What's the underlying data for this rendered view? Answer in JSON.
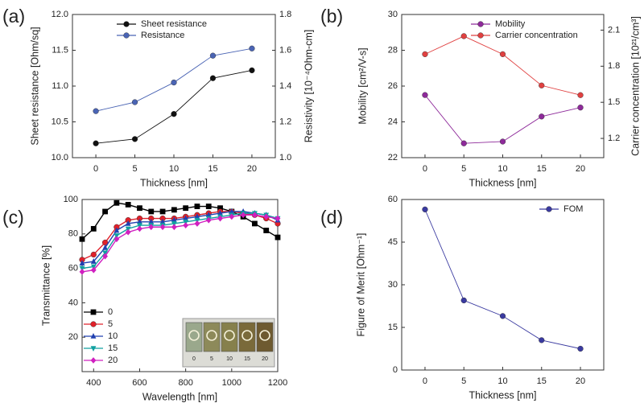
{
  "chart_data": [
    {
      "type": "line",
      "label": "(a)",
      "xlabel": "Thickness [nm]",
      "ylabel": "Sheet resistance [Ohm/sq]",
      "y2label": "Resistivity [10⁻⁴Ohm-cm]",
      "y2_color": "#3a4a9a",
      "x": [
        0,
        5,
        10,
        15,
        20
      ],
      "xlim": [
        -3,
        23
      ],
      "xticks": [
        0,
        5,
        10,
        15,
        20
      ],
      "ylim": [
        10,
        12
      ],
      "yticks": [
        {
          "value": 10,
          "label": "10.0"
        },
        10.5,
        {
          "value": 11,
          "label": "11.0"
        },
        11.5,
        {
          "value": 12,
          "label": "12.0"
        }
      ],
      "y2lim": [
        1,
        1.8
      ],
      "y2ticks": [
        {
          "value": 1,
          "label": "1.0"
        },
        1.2,
        1.4,
        1.6,
        1.8
      ],
      "legend": "upper left",
      "series": [
        {
          "name": "Sheet resistance",
          "color": "#111111",
          "marker": "circle",
          "values": [
            10.2,
            10.26,
            10.61,
            11.11,
            11.22
          ]
        },
        {
          "name": "Resistance",
          "color": "#4a64b4",
          "marker": "circle",
          "axis": "y2",
          "values": [
            1.26,
            1.31,
            1.42,
            1.57,
            1.61
          ]
        }
      ]
    },
    {
      "type": "line",
      "label": "(b)",
      "xlabel": "Thickness [nm]",
      "ylabel": "Mobility [cm²/V-s]",
      "y2label": "Carrier concentration [10²¹/cm³]",
      "y_color": "#8e2a9a",
      "y2_color": "#d83434",
      "x": [
        0,
        5,
        10,
        15,
        20
      ],
      "xlim": [
        -3,
        23
      ],
      "xticks": [
        0,
        5,
        10,
        15,
        20
      ],
      "ylim": [
        22,
        30
      ],
      "yticks": [
        22,
        24,
        26,
        28,
        30
      ],
      "y2lim": [
        1.04,
        2.23
      ],
      "y2ticks": [
        1.2,
        1.5,
        1.8,
        2.1
      ],
      "legend": "upper right",
      "series": [
        {
          "name": "Mobility",
          "color": "#8e2a9a",
          "marker": "circle",
          "values": [
            25.5,
            22.8,
            22.9,
            24.3,
            24.8
          ]
        },
        {
          "name": "Carrier concentration",
          "color": "#e04040",
          "marker": "circle",
          "axis": "y2",
          "values": [
            1.9,
            2.05,
            1.9,
            1.64,
            1.56
          ]
        }
      ]
    },
    {
      "type": "line",
      "label": "(c)",
      "xlabel": "Wavelength [nm]",
      "ylabel": "Transmittance [%]",
      "x": [
        350,
        400,
        450,
        500,
        550,
        600,
        650,
        700,
        750,
        800,
        850,
        900,
        950,
        1000,
        1050,
        1100,
        1150,
        1200
      ],
      "xlim": [
        350,
        1200
      ],
      "xticks": [
        400,
        600,
        800,
        1000,
        1200
      ],
      "ylim": [
        0,
        100
      ],
      "yticks": [
        20,
        40,
        60,
        80,
        100
      ],
      "legend": "lower left",
      "inset_labels": [
        "0",
        "5",
        "10",
        "15",
        "20"
      ],
      "series": [
        {
          "name": "0",
          "color": "#000000",
          "marker": "square",
          "values": [
            77,
            83,
            93,
            98,
            97,
            95,
            93,
            93,
            94,
            95,
            96,
            96,
            95,
            93,
            90,
            86,
            82,
            78
          ]
        },
        {
          "name": "5",
          "color": "#e0202a",
          "marker": "circle",
          "values": [
            65,
            68,
            75,
            84,
            88,
            89,
            89,
            89,
            89,
            90,
            91,
            92,
            93,
            93,
            92,
            91,
            89,
            86
          ]
        },
        {
          "name": "10",
          "color": "#2040b0",
          "marker": "triangle",
          "values": [
            63,
            64,
            72,
            82,
            86,
            87,
            87,
            87,
            88,
            89,
            90,
            91,
            92,
            93,
            93,
            92,
            91,
            88
          ]
        },
        {
          "name": "15",
          "color": "#10a0a0",
          "marker": "down-triangle",
          "values": [
            60,
            61,
            69,
            79,
            83,
            85,
            85,
            85,
            86,
            87,
            88,
            89,
            90,
            91,
            92,
            92,
            91,
            89
          ]
        },
        {
          "name": "20",
          "color": "#d020c0",
          "marker": "diamond",
          "values": [
            58,
            59,
            67,
            77,
            81,
            83,
            84,
            84,
            84,
            85,
            86,
            88,
            89,
            90,
            91,
            91,
            90,
            89
          ]
        }
      ]
    },
    {
      "type": "line",
      "label": "(d)",
      "xlabel": "Thickness [nm]",
      "ylabel": "Figure of Merit [Ohm⁻¹]",
      "x": [
        0,
        5,
        10,
        15,
        20
      ],
      "xlim": [
        -3,
        23
      ],
      "xticks": [
        0,
        5,
        10,
        15,
        20
      ],
      "ylim": [
        0,
        60
      ],
      "yticks": [
        0,
        15,
        30,
        45,
        60
      ],
      "legend": "upper right",
      "series": [
        {
          "name": "FOM",
          "color": "#3a3aa0",
          "marker": "circle",
          "values": [
            56.5,
            24.5,
            19,
            10.5,
            7.5
          ]
        }
      ]
    }
  ]
}
